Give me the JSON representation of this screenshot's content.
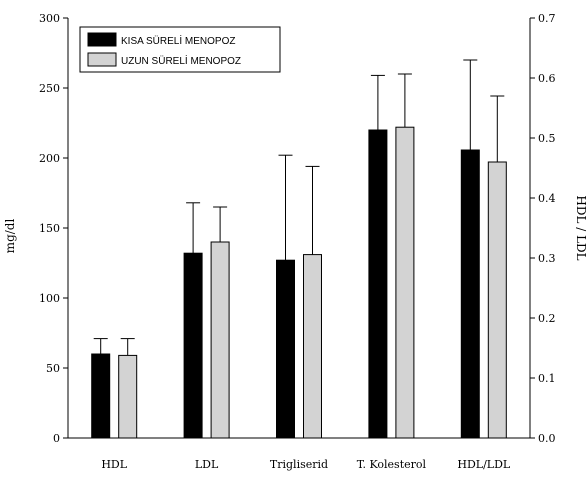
{
  "chart_data": {
    "type": "bar",
    "categories": [
      "HDL",
      "LDL",
      "Trigliserid",
      "T. Kolesterol",
      "HDL/LDL"
    ],
    "series": [
      {
        "name": "KISA SÜRELİ MENOPOZ",
        "color": "#000000",
        "values": [
          60,
          132,
          127,
          220,
          0.48
        ],
        "error_upper": [
          71,
          168,
          202,
          259,
          0.63
        ]
      },
      {
        "name": "UZUN SÜRELİ MENOPOZ",
        "color": "#d3d3d3",
        "values": [
          59,
          140,
          131,
          222,
          0.46
        ],
        "error_upper": [
          71,
          165,
          194,
          260,
          0.57
        ]
      }
    ],
    "value_axis": [
      "left",
      "left",
      "left",
      "left",
      "right"
    ],
    "ylabel_left": "mg/dl",
    "ylabel_right": "HDL / LDL",
    "ylim_left": [
      0,
      300
    ],
    "ylim_right": [
      0,
      0.7
    ],
    "yticks_left": [
      "0",
      "50",
      "100",
      "150",
      "200",
      "250",
      "300"
    ],
    "yticks_right": [
      "0.0",
      "0.1",
      "0.2",
      "0.3",
      "0.4",
      "0.5",
      "0.6",
      "0.7"
    ],
    "grid": false,
    "legend_position": "top-left"
  }
}
